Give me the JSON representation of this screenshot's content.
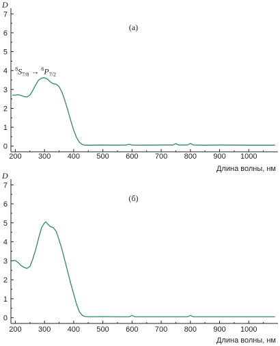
{
  "chart_data": [
    {
      "type": "line",
      "panel_label": "(а)",
      "ylabel": "D",
      "xlabel": "Длина волны, нм",
      "xlim": [
        185,
        1100
      ],
      "ylim": [
        -0.3,
        7.3
      ],
      "xticks": [
        200,
        300,
        400,
        500,
        600,
        700,
        800,
        900,
        1000
      ],
      "yticks": [
        0,
        1,
        2,
        3,
        4,
        5,
        6,
        7
      ],
      "annotation": {
        "parts": [
          "8",
          "S",
          "7/8",
          " → ",
          "6",
          "P",
          "7/2"
        ],
        "x": 300,
        "y": 3.95
      },
      "color": "#2e8b57",
      "series": [
        {
          "x": [
            190,
            200,
            210,
            220,
            230,
            240,
            250,
            260,
            270,
            280,
            290,
            300,
            310,
            320,
            330,
            340,
            350,
            360,
            370,
            380,
            390,
            400,
            410,
            420,
            430,
            440,
            460,
            500,
            540,
            580,
            590,
            600,
            620,
            700,
            740,
            750,
            760,
            790,
            800,
            810,
            850,
            900,
            1000,
            1090
          ],
          "y": [
            2.7,
            2.7,
            2.72,
            2.68,
            2.62,
            2.6,
            2.7,
            2.95,
            3.25,
            3.5,
            3.6,
            3.62,
            3.55,
            3.4,
            3.3,
            3.28,
            3.15,
            2.85,
            2.4,
            1.9,
            1.35,
            0.85,
            0.45,
            0.2,
            0.08,
            0.05,
            0.05,
            0.06,
            0.05,
            0.06,
            0.1,
            0.06,
            0.05,
            0.06,
            0.06,
            0.13,
            0.06,
            0.06,
            0.14,
            0.06,
            0.05,
            0.06,
            0.05,
            0.05
          ]
        }
      ]
    },
    {
      "type": "line",
      "panel_label": "(б)",
      "ylabel": "D",
      "xlabel": "Длина волны, нм",
      "xlim": [
        185,
        1100
      ],
      "ylim": [
        -0.3,
        7.3
      ],
      "xticks": [
        200,
        300,
        400,
        500,
        600,
        700,
        800,
        900,
        1000
      ],
      "yticks": [
        0,
        1,
        2,
        3,
        4,
        5,
        6,
        7
      ],
      "color": "#2e8b57",
      "series": [
        {
          "x": [
            190,
            200,
            210,
            220,
            230,
            240,
            250,
            260,
            270,
            280,
            290,
            300,
            305,
            310,
            320,
            330,
            340,
            350,
            360,
            370,
            380,
            390,
            400,
            410,
            420,
            430,
            440,
            460,
            500,
            550,
            590,
            600,
            610,
            650,
            700,
            790,
            800,
            810,
            850,
            900,
            1000,
            1090
          ],
          "y": [
            3.0,
            3.02,
            2.9,
            2.75,
            2.65,
            2.6,
            2.7,
            3.1,
            3.6,
            4.2,
            4.75,
            5.0,
            5.05,
            4.95,
            4.8,
            4.75,
            4.55,
            4.1,
            3.6,
            3.0,
            2.4,
            1.8,
            1.25,
            0.7,
            0.3,
            0.12,
            0.06,
            0.05,
            0.06,
            0.05,
            0.05,
            0.12,
            0.05,
            0.05,
            0.05,
            0.05,
            0.12,
            0.05,
            0.05,
            0.05,
            0.05,
            0.05
          ]
        }
      ]
    }
  ]
}
